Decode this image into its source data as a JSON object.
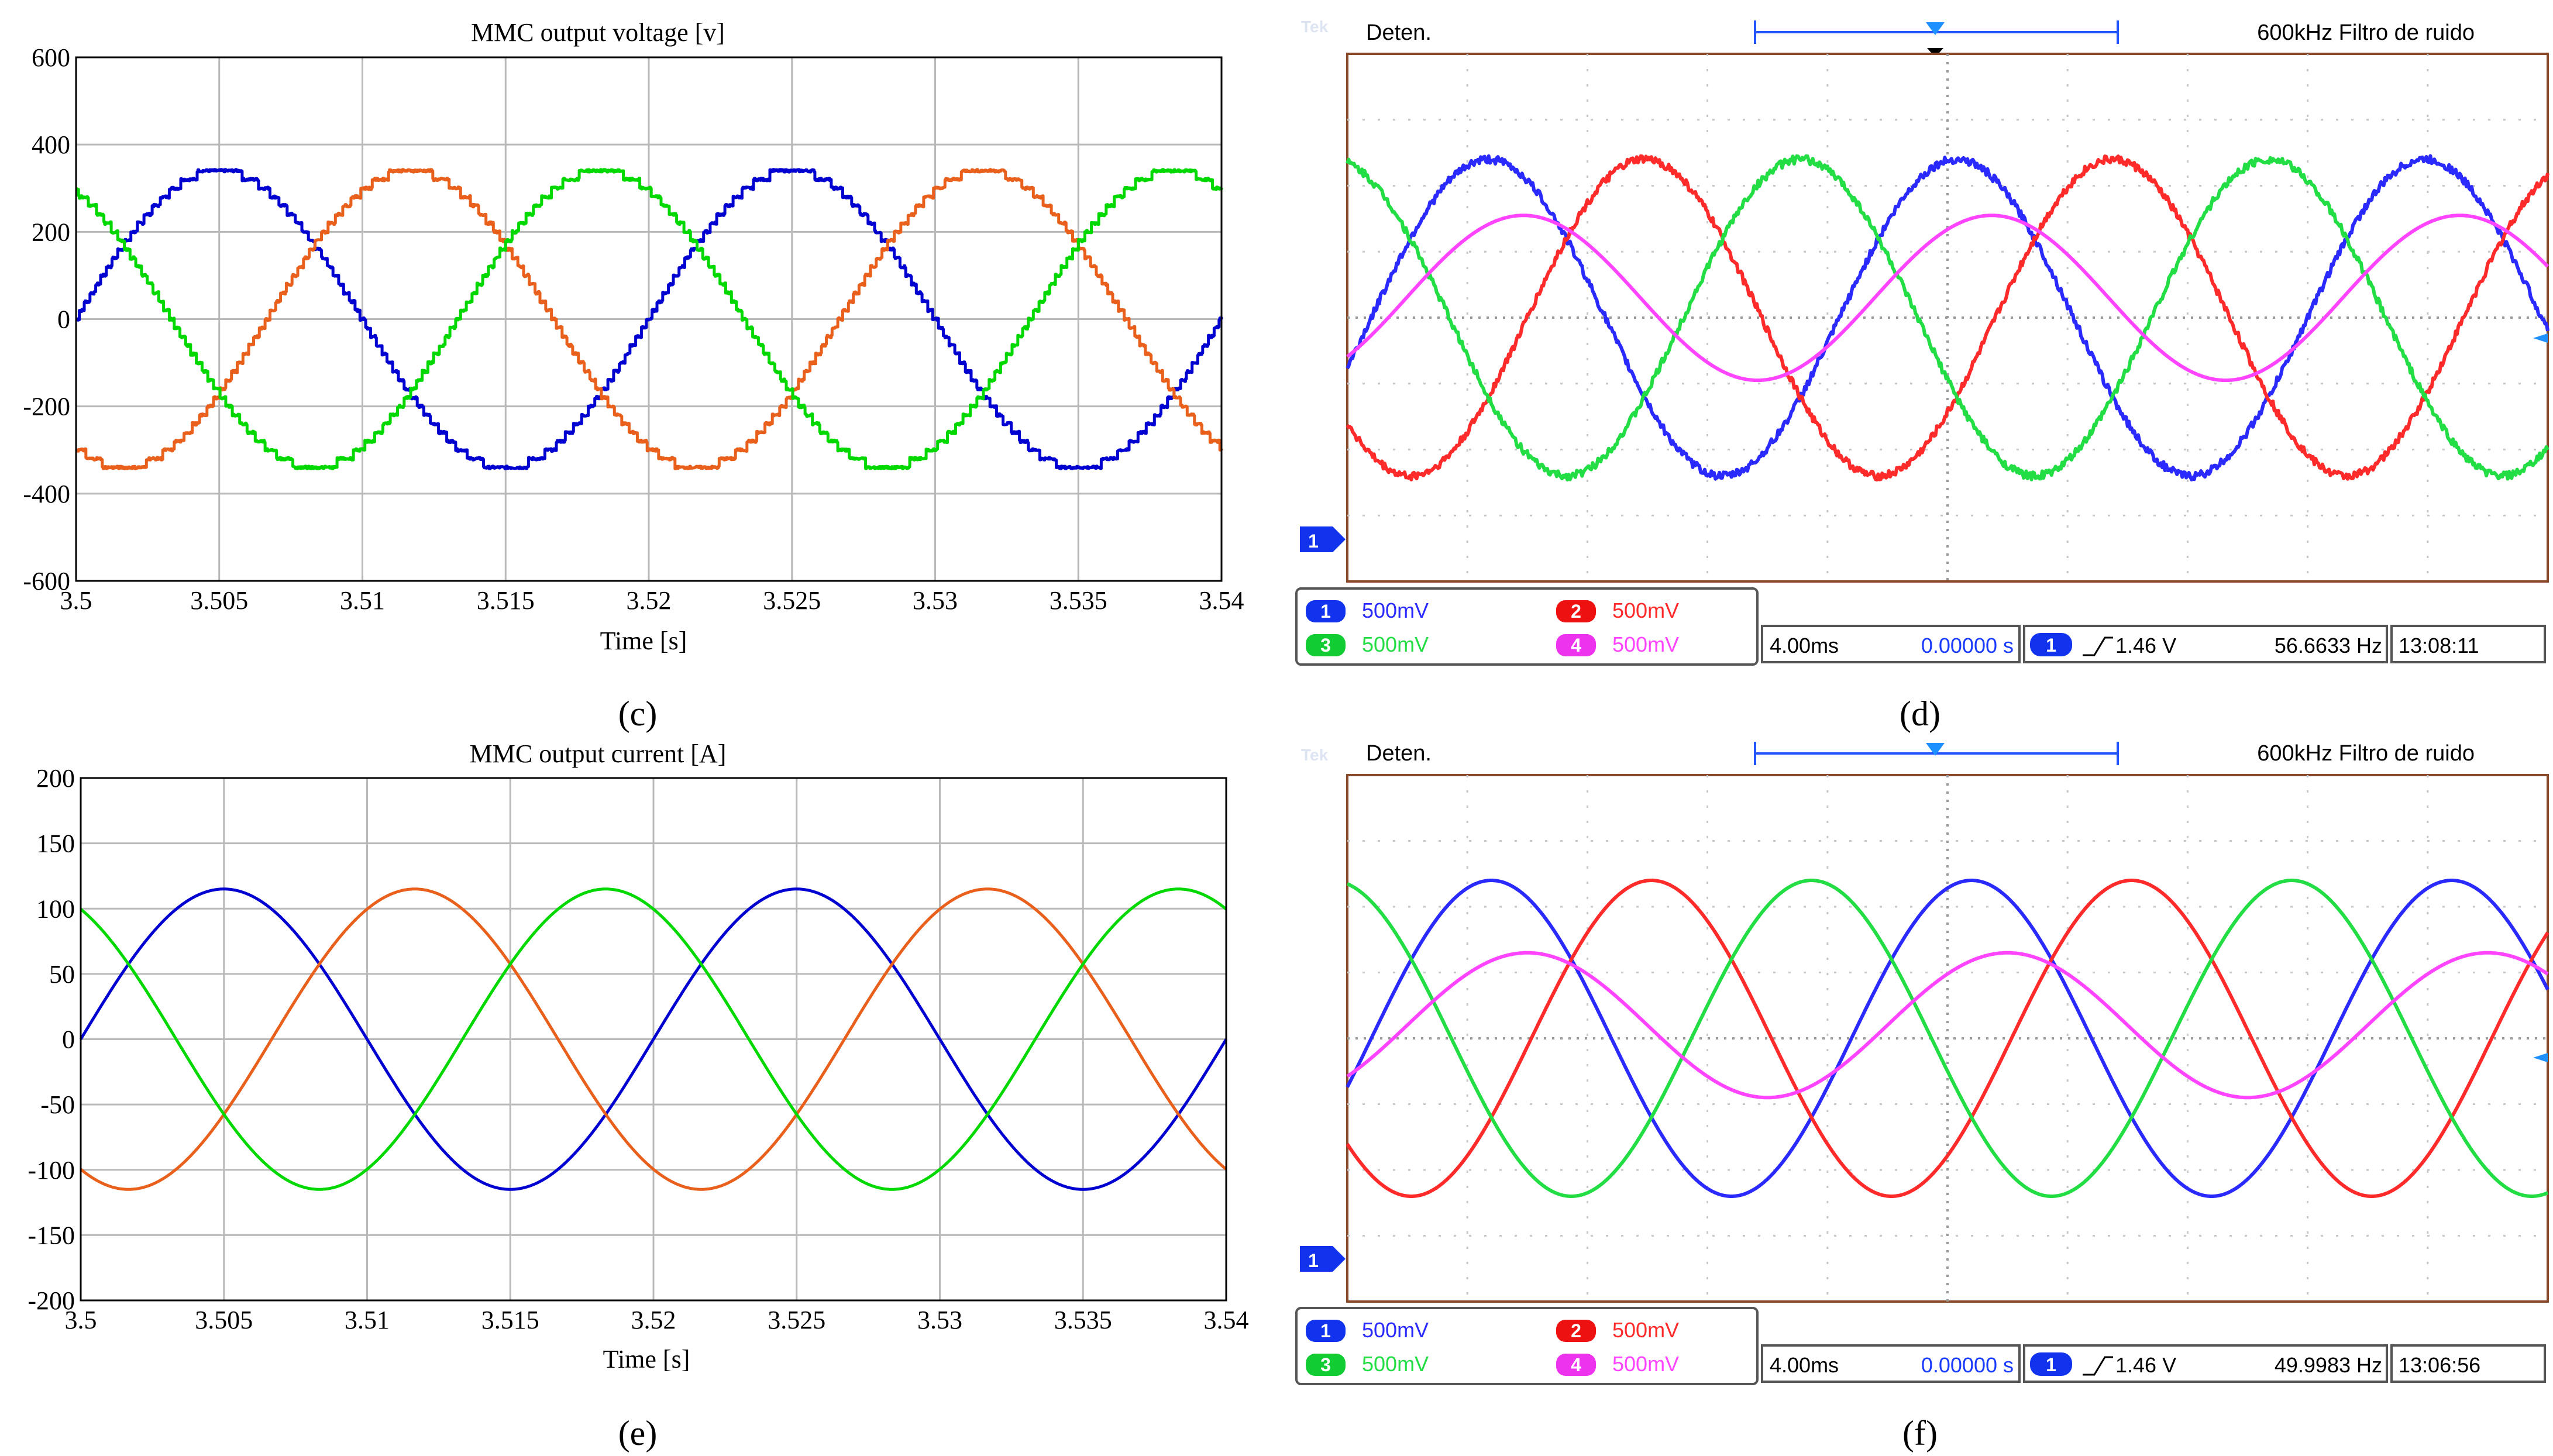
{
  "chart_data": [
    {
      "type": "line",
      "panel_label": "(c)",
      "title": "MMC output voltage [v]",
      "xlabel": "Time [s]",
      "ylabel": "",
      "xlim": [
        3.5,
        3.54
      ],
      "ylim": [
        -600,
        600
      ],
      "x_ticks": [
        "3.5",
        "3.505",
        "3.51",
        "3.515",
        "3.52",
        "3.525",
        "3.53",
        "3.535",
        "3.54"
      ],
      "y_ticks": [
        "600",
        "400",
        "200",
        "0",
        "-200",
        "-400",
        "-600"
      ],
      "grid": true,
      "series": [
        {
          "color": "#0000d0",
          "amplitude": 340,
          "frequency_hz": 50,
          "phase_deg": 0
        },
        {
          "color": "#e8601c",
          "amplitude": 340,
          "frequency_hz": 50,
          "phase_deg": -120
        },
        {
          "color": "#00d800",
          "amplitude": 340,
          "frequency_hz": 50,
          "phase_deg": 120
        }
      ]
    },
    {
      "type": "line",
      "panel_label": "(e)",
      "title": "MMC output current [A]",
      "xlabel": "Time [s]",
      "ylabel": "",
      "xlim": [
        3.5,
        3.54
      ],
      "ylim": [
        -200,
        200
      ],
      "x_ticks": [
        "3.5",
        "3.505",
        "3.51",
        "3.515",
        "3.52",
        "3.525",
        "3.53",
        "3.535",
        "3.54"
      ],
      "y_ticks": [
        "200",
        "150",
        "100",
        "50",
        "0",
        "-50",
        "-100",
        "-150",
        "-200"
      ],
      "grid": true,
      "series": [
        {
          "color": "#0000d0",
          "amplitude": 115,
          "frequency_hz": 50,
          "phase_deg": 0
        },
        {
          "color": "#e8601c",
          "amplitude": 115,
          "frequency_hz": 50,
          "phase_deg": -120
        },
        {
          "color": "#00d800",
          "amplitude": 115,
          "frequency_hz": 50,
          "phase_deg": 120
        }
      ]
    },
    {
      "type": "line",
      "panel_label": "(d)",
      "status": "Deten.",
      "filter_text": "600kHz  Filtro de ruido",
      "channels": [
        {
          "num": "1",
          "scale": "500mV",
          "color": "#2a2aff"
        },
        {
          "num": "2",
          "scale": "500mV",
          "color": "#ff2a2a"
        },
        {
          "num": "3",
          "scale": "500mV",
          "color": "#22dd44"
        },
        {
          "num": "4",
          "scale": "500mV",
          "color": "#ff44ff"
        }
      ],
      "timebase": "4.00ms",
      "position": "0.00000 s",
      "trigger_channel": "1",
      "trigger_level": "1.46 V",
      "frequency": "56.6633 Hz",
      "clock": "13:08:11",
      "noisy": true,
      "traces": [
        {
          "channel": "1",
          "amplitude_div": 2.4,
          "offset_div": 0.0,
          "phase_deg": 0
        },
        {
          "channel": "2",
          "amplitude_div": 2.4,
          "offset_div": 0.0,
          "phase_deg": -120
        },
        {
          "channel": "3",
          "amplitude_div": 2.4,
          "offset_div": 0.0,
          "phase_deg": 120
        },
        {
          "channel": "4",
          "amplitude_div": 1.25,
          "offset_div": 0.3,
          "phase_deg": -27
        }
      ]
    },
    {
      "type": "line",
      "panel_label": "(f)",
      "status": "Deten.",
      "filter_text": "600kHz  Filtro de ruido",
      "channels": [
        {
          "num": "1",
          "scale": "500mV",
          "color": "#2a2aff"
        },
        {
          "num": "2",
          "scale": "500mV",
          "color": "#ff2a2a"
        },
        {
          "num": "3",
          "scale": "500mV",
          "color": "#22dd44"
        },
        {
          "num": "4",
          "scale": "500mV",
          "color": "#ff44ff"
        }
      ],
      "timebase": "4.00ms",
      "position": "0.00000 s",
      "trigger_channel": "1",
      "trigger_level": "1.46 V",
      "frequency": "49.9983 Hz",
      "clock": "13:06:56",
      "noisy": false,
      "traces": [
        {
          "channel": "1",
          "amplitude_div": 2.4,
          "offset_div": 0.0,
          "phase_deg": 0
        },
        {
          "channel": "2",
          "amplitude_div": 2.4,
          "offset_div": 0.0,
          "phase_deg": -120
        },
        {
          "channel": "3",
          "amplitude_div": 2.4,
          "offset_div": 0.0,
          "phase_deg": 120
        },
        {
          "channel": "4",
          "amplitude_div": 1.1,
          "offset_div": 0.2,
          "phase_deg": -27
        }
      ]
    }
  ],
  "theme": {
    "scope_channel_bg": [
      "#1133ee",
      "#ee1111",
      "#11cc33",
      "#ee33ee"
    ],
    "scope_frame": "#8a4a2a",
    "trigger_marker": "#1e90ff"
  }
}
